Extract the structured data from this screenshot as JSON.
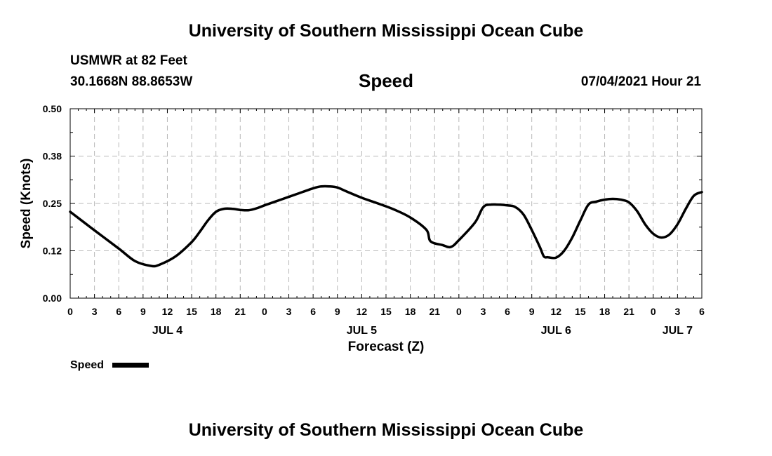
{
  "header": {
    "title": "University of Southern Mississippi Ocean Cube",
    "station": "USMWR at 82 Feet",
    "coordinates": "30.1668N  88.8653W",
    "parameter": "Speed",
    "datetime": "07/04/2021 Hour 21"
  },
  "footer": {
    "title": "University of Southern Mississippi Ocean Cube"
  },
  "chart_data": {
    "type": "line",
    "title": "Speed",
    "xlabel": "Forecast (Z)",
    "ylabel": "Speed (Knots)",
    "ylim": [
      0,
      0.5
    ],
    "yticks": [
      "0.00",
      "0.12",
      "0.25",
      "0.38",
      "0.50"
    ],
    "xlim": [
      0,
      78
    ],
    "x_unit": "hours from JUL 4 00Z",
    "xtick_labels": [
      "0",
      "3",
      "6",
      "9",
      "12",
      "15",
      "18",
      "21",
      "0",
      "3",
      "6",
      "9",
      "12",
      "15",
      "18",
      "21",
      "0",
      "3",
      "6",
      "9",
      "12",
      "15",
      "18",
      "21",
      "0",
      "3",
      "6"
    ],
    "day_labels": [
      {
        "label": "JUL 4",
        "hour": 12
      },
      {
        "label": "JUL 5",
        "hour": 36
      },
      {
        "label": "JUL 6",
        "hour": 60
      },
      {
        "label": "JUL 7",
        "hour": 75
      }
    ],
    "grid": true,
    "series": [
      {
        "name": "Speed",
        "color": "#000000",
        "x": [
          0,
          3,
          6,
          8,
          10,
          11,
          13,
          15,
          16,
          17,
          18,
          19,
          20,
          21,
          22,
          23,
          24,
          26,
          28,
          30,
          31,
          32,
          33,
          34,
          36,
          38,
          40,
          42,
          44,
          44.5,
          46,
          47,
          48,
          50,
          51,
          52,
          54,
          55,
          56,
          57,
          58,
          58.5,
          59,
          60,
          61,
          62,
          63,
          64,
          65,
          66,
          67,
          68,
          69,
          70,
          71,
          72,
          73,
          74,
          75,
          76,
          77,
          78
        ],
        "values": [
          0.228,
          0.179,
          0.131,
          0.098,
          0.085,
          0.088,
          0.11,
          0.148,
          0.175,
          0.205,
          0.228,
          0.236,
          0.236,
          0.233,
          0.232,
          0.237,
          0.245,
          0.26,
          0.275,
          0.29,
          0.295,
          0.295,
          0.292,
          0.283,
          0.265,
          0.25,
          0.234,
          0.213,
          0.18,
          0.15,
          0.14,
          0.135,
          0.153,
          0.2,
          0.24,
          0.247,
          0.245,
          0.24,
          0.22,
          0.18,
          0.135,
          0.11,
          0.108,
          0.107,
          0.125,
          0.16,
          0.205,
          0.247,
          0.255,
          0.26,
          0.262,
          0.26,
          0.253,
          0.23,
          0.195,
          0.17,
          0.16,
          0.168,
          0.195,
          0.235,
          0.27,
          0.28
        ]
      }
    ],
    "legend": {
      "label": "Speed",
      "position": "bottom-left"
    }
  }
}
